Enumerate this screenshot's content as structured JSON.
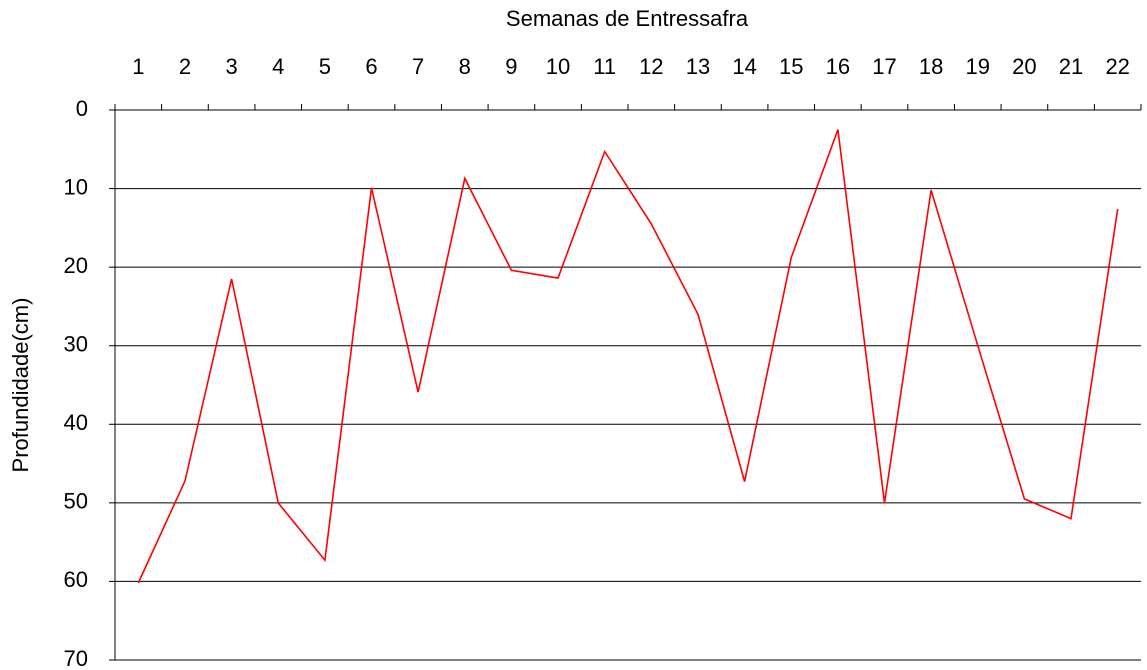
{
  "chart_data": {
    "type": "line",
    "xlabel": "Semanas de Entressafra",
    "ylabel": "Profundidade(cm)",
    "categories": [
      "1",
      "2",
      "3",
      "4",
      "5",
      "6",
      "7",
      "8",
      "9",
      "10",
      "11",
      "12",
      "13",
      "14",
      "15",
      "16",
      "17",
      "18",
      "19",
      "20",
      "21",
      "22"
    ],
    "values": [
      60.2,
      47.2,
      21.5,
      50,
      57.3,
      9.9,
      35.9,
      8.7,
      20.4,
      21.4,
      5.3,
      14.5,
      26,
      47.3,
      18.8,
      2.5,
      50,
      10.2,
      30,
      49.5,
      52,
      12.6
    ],
    "color": "#ff0000",
    "ylim": [
      0,
      70
    ],
    "yticks": [
      0,
      10,
      20,
      30,
      40,
      50,
      60,
      70
    ],
    "y_inverted": true,
    "x_axis_position": "top",
    "grid": true
  }
}
